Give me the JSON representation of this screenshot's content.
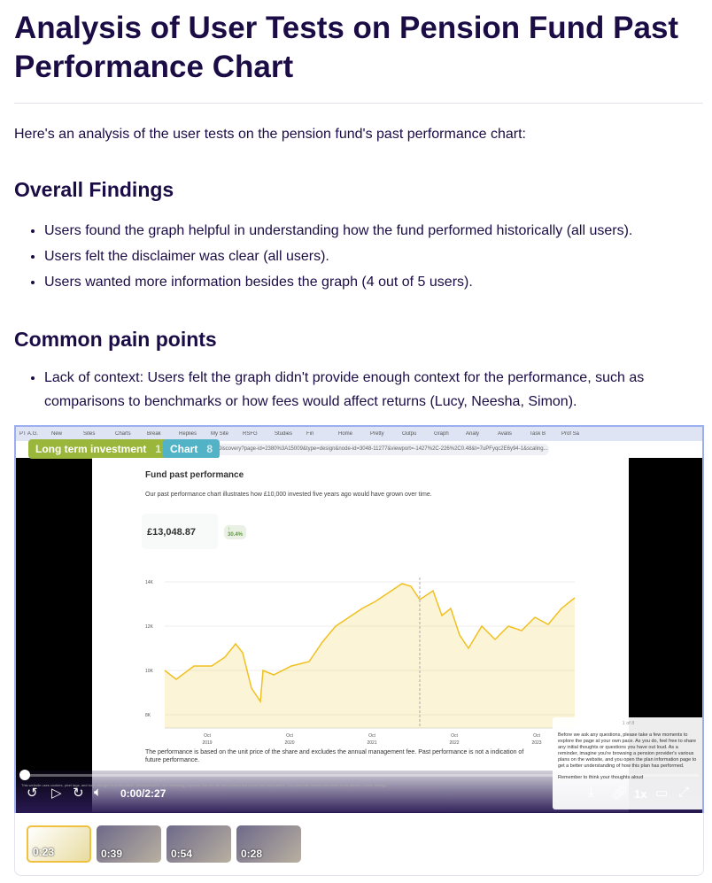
{
  "title": "Analysis of User Tests on Pension Fund Past Performance Chart",
  "intro": "Here's an analysis of the user tests on the pension fund's past performance chart:",
  "sections": [
    {
      "heading": "Overall Findings",
      "items": [
        "Users found the graph helpful in understanding how the fund performed historically (all users).",
        "Users felt the disclaimer was clear (all users).",
        "Users wanted more information besides the graph (4 out of 5 users)."
      ]
    },
    {
      "heading": "Common pain points",
      "items": [
        "Lack of context: Users felt the graph didn't provide enough context for the performance, such as comparisons to benchmarks or how fees would affect returns (Lucy, Neesha, Simon)."
      ]
    }
  ],
  "video": {
    "tags": [
      {
        "label": "Long term investment",
        "count": "1",
        "color": "#9ab73c"
      },
      {
        "label": "Chart",
        "count": "8",
        "color": "#52b3c6"
      }
    ],
    "browser_tabs": [
      "PT A.G.",
      "New",
      "Sites",
      "Charts",
      "Break",
      "Replies",
      "My Site",
      "RSFG",
      "Studies",
      "Fin",
      "Home",
      "Pretty",
      "Outpu",
      "Graph",
      "Analy",
      "Avalis",
      "Task B",
      "Prof Sa"
    ],
    "url": "Discovery?page-id=2380%3A15009&type=design&node-id=3048-11277&viewport=-1427%2C-226%2C0.48&t=7uPFyqc2E6y94-1&scaling...",
    "page_title": "Fund past performance",
    "page_desc": "Our past performance chart illustrates how £10,000 invested five years ago would have grown over time.",
    "value": "£13,048.87",
    "change": "↑ 30.4%",
    "y_ticks": [
      "14K",
      "12K",
      "10K",
      "8K"
    ],
    "x_ticks": [
      [
        "Oct",
        "2019"
      ],
      [
        "Oct",
        "2020"
      ],
      [
        "Oct",
        "2021"
      ],
      [
        "Oct",
        "2022"
      ],
      [
        "Oct",
        "2023"
      ]
    ],
    "disclaimer": "The performance is based on the unit price of the share and excludes the annual management fee. Past performance is not a indication of future performance.",
    "cookie": "This website uses cookies, pixel tags, and local storage for performance, personalization, and marketing purposes. We use our own cookies and some from third parties. Only essential cookies are turned on by default. Cookie settings",
    "popup_counter": "1 of 8",
    "popup_text": "Before we ask any questions, please take a few moments to explore the page at your own pace. As you do, feel free to share any initial thoughts or questions you have out loud. As a reminder, imagine you're browsing a pension provider's various plans on the website, and you open the plan information page to get a better understanding of how this plan has performed.",
    "popup_footer": "Remember to think your thoughts aloud",
    "time": "0:00/2:27",
    "speed": "1x",
    "progress": 0,
    "chart_color": "#f0c020"
  },
  "thumbnails": [
    "0:23",
    "0:39",
    "0:54",
    "0:28"
  ]
}
